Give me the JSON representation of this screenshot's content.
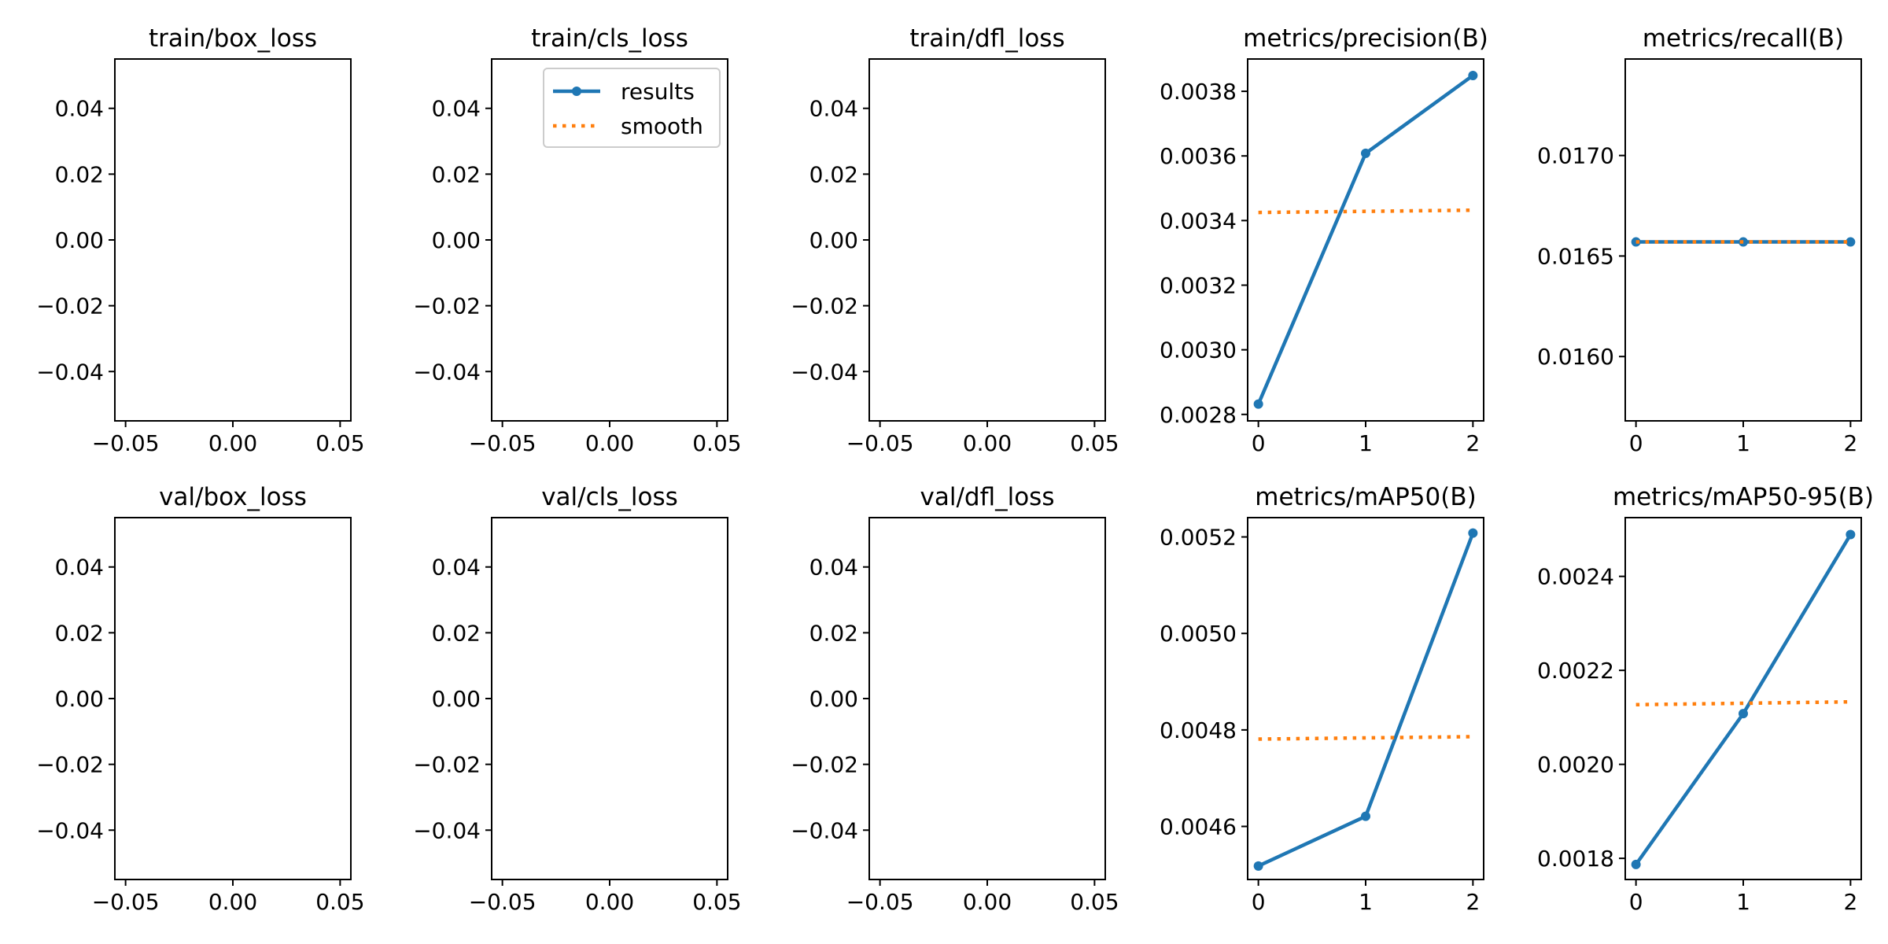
{
  "colors": {
    "results": "#1f77b4",
    "smooth": "#ff7f0e",
    "axis": "#000000"
  },
  "legend": {
    "results_label": "results",
    "smooth_label": "smooth",
    "placement": "upper-right",
    "panel": 1
  },
  "chart_data": [
    {
      "type": "line",
      "title": "train/box_loss",
      "xlabel": "",
      "ylabel": "",
      "xlim": [
        -0.055,
        0.055
      ],
      "ylim": [
        -0.055,
        0.055
      ],
      "x_ticks": [
        -0.05,
        0.0,
        0.05
      ],
      "x_tick_labels": [
        "−0.05",
        "0.00",
        "0.05"
      ],
      "y_ticks": [
        -0.04,
        -0.02,
        0.0,
        0.02,
        0.04
      ],
      "y_tick_labels": [
        "−0.04",
        "−0.02",
        "0.00",
        "0.02",
        "0.04"
      ],
      "grid": false,
      "series": []
    },
    {
      "type": "line",
      "title": "train/cls_loss",
      "xlabel": "",
      "ylabel": "",
      "xlim": [
        -0.055,
        0.055
      ],
      "ylim": [
        -0.055,
        0.055
      ],
      "x_ticks": [
        -0.05,
        0.0,
        0.05
      ],
      "x_tick_labels": [
        "−0.05",
        "0.00",
        "0.05"
      ],
      "y_ticks": [
        -0.04,
        -0.02,
        0.0,
        0.02,
        0.04
      ],
      "y_tick_labels": [
        "−0.04",
        "−0.02",
        "0.00",
        "0.02",
        "0.04"
      ],
      "grid": false,
      "series": []
    },
    {
      "type": "line",
      "title": "train/dfl_loss",
      "xlabel": "",
      "ylabel": "",
      "xlim": [
        -0.055,
        0.055
      ],
      "ylim": [
        -0.055,
        0.055
      ],
      "x_ticks": [
        -0.05,
        0.0,
        0.05
      ],
      "x_tick_labels": [
        "−0.05",
        "0.00",
        "0.05"
      ],
      "y_ticks": [
        -0.04,
        -0.02,
        0.0,
        0.02,
        0.04
      ],
      "y_tick_labels": [
        "−0.04",
        "−0.02",
        "0.00",
        "0.02",
        "0.04"
      ],
      "grid": false,
      "series": []
    },
    {
      "type": "line",
      "title": "metrics/precision(B)",
      "xlabel": "",
      "ylabel": "",
      "xlim": [
        -0.1,
        2.1
      ],
      "ylim": [
        0.00278,
        0.0039
      ],
      "x_ticks": [
        0,
        1,
        2
      ],
      "x_tick_labels": [
        "0",
        "1",
        "2"
      ],
      "y_ticks": [
        0.0028,
        0.003,
        0.0032,
        0.0034,
        0.0036,
        0.0038
      ],
      "y_tick_labels": [
        "0.0028",
        "0.0030",
        "0.0032",
        "0.0034",
        "0.0036",
        "0.0038"
      ],
      "grid": false,
      "series": [
        {
          "name": "results",
          "style": "line-marker",
          "x": [
            0,
            1,
            2
          ],
          "values": [
            0.002832,
            0.003608,
            0.003849
          ]
        },
        {
          "name": "smooth",
          "style": "dotted",
          "x": [
            0,
            2
          ],
          "values": [
            0.003425,
            0.003432
          ]
        }
      ]
    },
    {
      "type": "line",
      "title": "metrics/recall(B)",
      "xlabel": "",
      "ylabel": "",
      "xlim": [
        -0.1,
        2.1
      ],
      "ylim": [
        0.01568,
        0.01748
      ],
      "x_ticks": [
        0,
        1,
        2
      ],
      "x_tick_labels": [
        "0",
        "1",
        "2"
      ],
      "y_ticks": [
        0.016,
        0.0165,
        0.017
      ],
      "y_tick_labels": [
        "0.0160",
        "0.0165",
        "0.0170"
      ],
      "grid": false,
      "series": [
        {
          "name": "results",
          "style": "line-marker",
          "x": [
            0,
            1,
            2
          ],
          "values": [
            0.01657,
            0.01657,
            0.01657
          ]
        },
        {
          "name": "smooth",
          "style": "dotted",
          "x": [
            0,
            2
          ],
          "values": [
            0.01657,
            0.01657
          ]
        }
      ]
    },
    {
      "type": "line",
      "title": "val/box_loss",
      "xlabel": "",
      "ylabel": "",
      "xlim": [
        -0.055,
        0.055
      ],
      "ylim": [
        -0.055,
        0.055
      ],
      "x_ticks": [
        -0.05,
        0.0,
        0.05
      ],
      "x_tick_labels": [
        "−0.05",
        "0.00",
        "0.05"
      ],
      "y_ticks": [
        -0.04,
        -0.02,
        0.0,
        0.02,
        0.04
      ],
      "y_tick_labels": [
        "−0.04",
        "−0.02",
        "0.00",
        "0.02",
        "0.04"
      ],
      "grid": false,
      "series": []
    },
    {
      "type": "line",
      "title": "val/cls_loss",
      "xlabel": "",
      "ylabel": "",
      "xlim": [
        -0.055,
        0.055
      ],
      "ylim": [
        -0.055,
        0.055
      ],
      "x_ticks": [
        -0.05,
        0.0,
        0.05
      ],
      "x_tick_labels": [
        "−0.05",
        "0.00",
        "0.05"
      ],
      "y_ticks": [
        -0.04,
        -0.02,
        0.0,
        0.02,
        0.04
      ],
      "y_tick_labels": [
        "−0.04",
        "−0.02",
        "0.00",
        "0.02",
        "0.04"
      ],
      "grid": false,
      "series": []
    },
    {
      "type": "line",
      "title": "val/dfl_loss",
      "xlabel": "",
      "ylabel": "",
      "xlim": [
        -0.055,
        0.055
      ],
      "ylim": [
        -0.055,
        0.055
      ],
      "x_ticks": [
        -0.05,
        0.0,
        0.05
      ],
      "x_tick_labels": [
        "−0.05",
        "0.00",
        "0.05"
      ],
      "y_ticks": [
        -0.04,
        -0.02,
        0.0,
        0.02,
        0.04
      ],
      "y_tick_labels": [
        "−0.04",
        "−0.02",
        "0.00",
        "0.02",
        "0.04"
      ],
      "grid": false,
      "series": []
    },
    {
      "type": "line",
      "title": "metrics/mAP50(B)",
      "xlabel": "",
      "ylabel": "",
      "xlim": [
        -0.1,
        2.1
      ],
      "ylim": [
        0.00449,
        0.00524
      ],
      "x_ticks": [
        0,
        1,
        2
      ],
      "x_tick_labels": [
        "0",
        "1",
        "2"
      ],
      "y_ticks": [
        0.0046,
        0.0048,
        0.005,
        0.0052
      ],
      "y_tick_labels": [
        "0.0046",
        "0.0048",
        "0.0050",
        "0.0052"
      ],
      "grid": false,
      "series": [
        {
          "name": "results",
          "style": "line-marker",
          "x": [
            0,
            1,
            2
          ],
          "values": [
            0.004518,
            0.004621,
            0.005208
          ]
        },
        {
          "name": "smooth",
          "style": "dotted",
          "x": [
            0,
            2
          ],
          "values": [
            0.004781,
            0.004786
          ]
        }
      ]
    },
    {
      "type": "line",
      "title": "metrics/mAP50-95(B)",
      "xlabel": "",
      "ylabel": "",
      "xlim": [
        -0.1,
        2.1
      ],
      "ylim": [
        0.001755,
        0.002525
      ],
      "x_ticks": [
        0,
        1,
        2
      ],
      "x_tick_labels": [
        "0",
        "1",
        "2"
      ],
      "y_ticks": [
        0.0018,
        0.002,
        0.0022,
        0.0024
      ],
      "y_tick_labels": [
        "0.0018",
        "0.0020",
        "0.0022",
        "0.0024"
      ],
      "grid": false,
      "series": [
        {
          "name": "results",
          "style": "line-marker",
          "x": [
            0,
            1,
            2
          ],
          "values": [
            0.001787,
            0.002108,
            0.002489
          ]
        },
        {
          "name": "smooth",
          "style": "dotted",
          "x": [
            0,
            2
          ],
          "values": [
            0.002127,
            0.002133
          ]
        }
      ]
    }
  ]
}
